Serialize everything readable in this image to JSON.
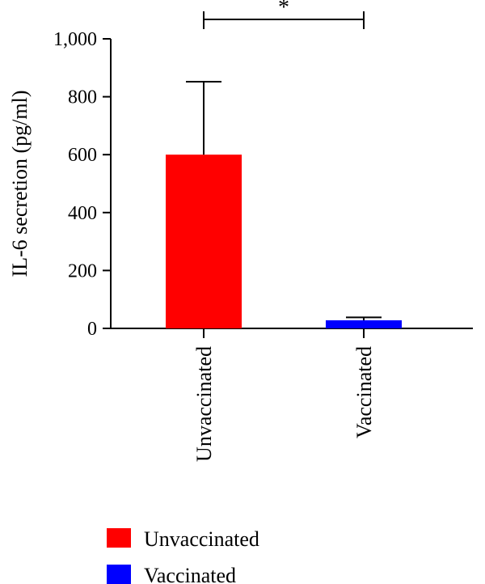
{
  "chart_data": {
    "type": "bar",
    "categories": [
      "Unvaccinated",
      "Vaccinated"
    ],
    "values": [
      600,
      28
    ],
    "error_upper": [
      852,
      38
    ],
    "colors": [
      "#ff0000",
      "#0000ff"
    ],
    "ylabel": "IL-6 secretion (pg/ml)",
    "ylim": [
      0,
      1000
    ],
    "yticks": [
      0,
      200,
      400,
      600,
      800,
      1000
    ],
    "ytick_labels": [
      "0",
      "200",
      "400",
      "600",
      "800",
      "1,000"
    ],
    "significance": {
      "label": "*",
      "between": [
        "Unvaccinated",
        "Vaccinated"
      ]
    },
    "legend": [
      {
        "label": "Unvaccinated",
        "color": "#ff0000"
      },
      {
        "label": "Vaccinated",
        "color": "#0000ff"
      }
    ],
    "legend_position": "bottom-left",
    "grid": false
  }
}
